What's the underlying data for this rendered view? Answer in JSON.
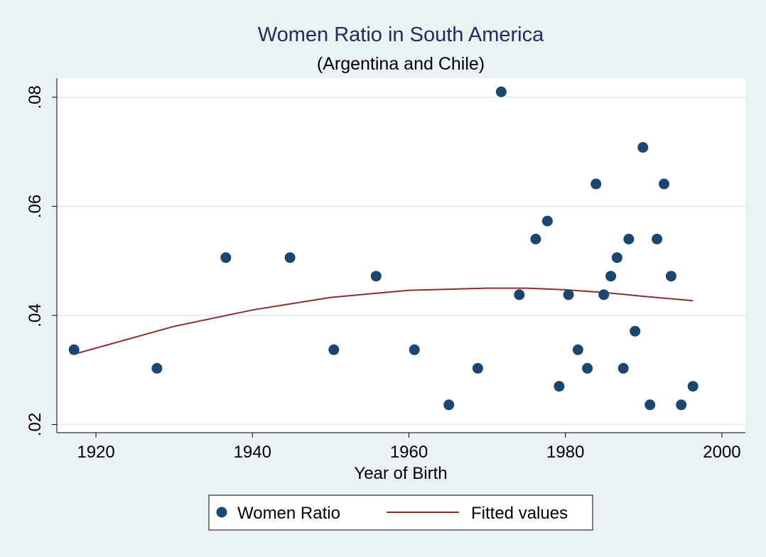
{
  "chart_data": {
    "type": "scatter",
    "title": "Women Ratio in South America",
    "subtitle": "(Argentina and Chile)",
    "xlabel": "Year of Birth",
    "ylabel": "",
    "xlim": [
      1915,
      2003
    ],
    "ylim": [
      0.0185,
      0.0835
    ],
    "x_ticks": [
      1920,
      1940,
      1960,
      1980,
      2000
    ],
    "x_tick_labels": [
      "1920",
      "1940",
      "1960",
      "1980",
      "2000"
    ],
    "y_ticks": [
      0.02,
      0.04,
      0.06,
      0.08
    ],
    "y_tick_labels": [
      ".02",
      ".04",
      ".06",
      ".08"
    ],
    "grid": "horizontal",
    "legend_position": "bottom",
    "colors": {
      "background": "#eaf2f3",
      "plot_bg": "#ffffff",
      "grid": "#e4eeee",
      "points": "#1a4770",
      "fit_line": "#8b2e2e",
      "title": "#1e2e5c",
      "text": "#000000"
    },
    "series": [
      {
        "name": "Women Ratio",
        "kind": "scatter",
        "x": [
          1917.2,
          1927.8,
          1936.6,
          1944.8,
          1950.4,
          1955.8,
          1960.7,
          1965.1,
          1968.8,
          1971.8,
          1974.1,
          1976.2,
          1977.7,
          1979.2,
          1980.4,
          1981.6,
          1982.8,
          1983.9,
          1984.9,
          1985.8,
          1986.6,
          1987.4,
          1988.1,
          1988.9,
          1989.9,
          1990.8,
          1991.7,
          1992.6,
          1993.5,
          1994.8,
          1996.3
        ],
        "y": [
          0.0337,
          0.0303,
          0.0506,
          0.0506,
          0.0337,
          0.0472,
          0.0337,
          0.0236,
          0.0303,
          0.081,
          0.0438,
          0.054,
          0.0573,
          0.027,
          0.0438,
          0.0337,
          0.0303,
          0.0641,
          0.0438,
          0.0472,
          0.0506,
          0.0303,
          0.054,
          0.0371,
          0.0708,
          0.0236,
          0.054,
          0.0641,
          0.0472,
          0.0236,
          0.027
        ]
      },
      {
        "name": "Fitted values",
        "kind": "line",
        "x": [
          1917.2,
          1930,
          1940,
          1950,
          1960,
          1970,
          1975,
          1980,
          1985,
          1990,
          1996.3
        ],
        "y": [
          0.0329,
          0.038,
          0.041,
          0.0433,
          0.0446,
          0.045,
          0.045,
          0.0447,
          0.0442,
          0.0435,
          0.0427
        ]
      }
    ]
  }
}
